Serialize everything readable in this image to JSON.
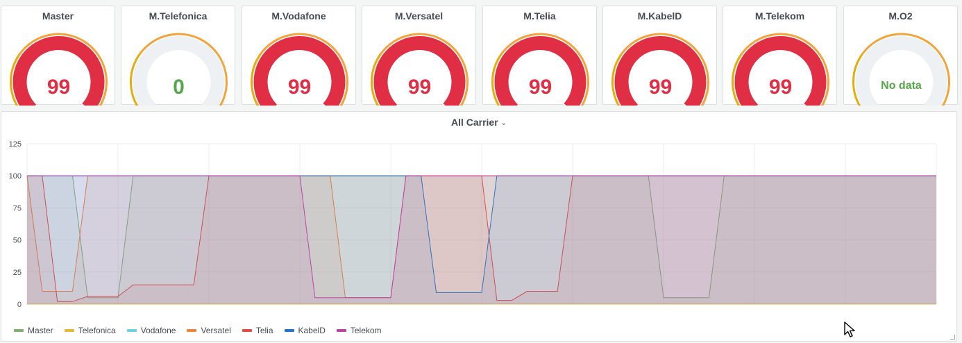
{
  "gauges": [
    {
      "title": "Master",
      "value": "99",
      "level": 99,
      "color": "#e02f44"
    },
    {
      "title": "M.Telefonica",
      "value": "0",
      "level": 0,
      "color": "#56a64b"
    },
    {
      "title": "M.Vodafone",
      "value": "99",
      "level": 99,
      "color": "#e02f44"
    },
    {
      "title": "M.Versatel",
      "value": "99",
      "level": 99,
      "color": "#e02f44"
    },
    {
      "title": "M.Telia",
      "value": "99",
      "level": 99,
      "color": "#e02f44"
    },
    {
      "title": "M.KabelD",
      "value": "99",
      "level": 99,
      "color": "#e02f44"
    },
    {
      "title": "M.Telekom",
      "value": "99",
      "level": 99,
      "color": "#e02f44"
    },
    {
      "title": "M.O2",
      "value": "No data",
      "level": null,
      "color": "#56a64b"
    }
  ],
  "gauge_thresholds": {
    "green": "#56a64b",
    "yellow": "#e5ac0e",
    "orange": "#f2a33a",
    "red": "#e02f44",
    "track": "#eef1f4"
  },
  "chart_title": "All Carrier",
  "chart_data": {
    "type": "area",
    "title": "All Carrier",
    "xlabel": "",
    "ylabel": "",
    "ylim": [
      0,
      125
    ],
    "yticks": [
      "0",
      "25",
      "50",
      "75",
      "100",
      "125"
    ],
    "x": [
      0,
      0.5,
      1,
      1.5,
      2,
      2.5,
      3,
      3.5,
      4,
      4.5,
      5,
      5.5,
      6,
      6.5,
      7,
      7.5,
      8,
      8.5,
      9,
      9.5,
      10,
      10.5,
      11,
      11.5,
      12,
      12.5,
      13,
      13.5,
      14,
      14.5,
      15,
      15.5,
      16,
      16.5,
      17,
      17.5,
      18,
      18.5,
      19,
      19.5,
      20,
      20.5,
      21,
      21.5,
      22,
      22.5,
      23,
      23.5,
      24,
      24.5,
      25,
      25.5,
      26,
      26.5,
      27,
      27.5,
      28,
      28.5,
      29,
      29.5,
      30
    ],
    "grid": true,
    "legend_position": "bottom-left",
    "series": [
      {
        "name": "Master",
        "color": "#7eb26d",
        "values": [
          100,
          100,
          100,
          100,
          5,
          5,
          5,
          100,
          100,
          100,
          100,
          100,
          100,
          100,
          100,
          100,
          100,
          100,
          100,
          100,
          100,
          100,
          100,
          100,
          100,
          100,
          100,
          100,
          100,
          100,
          100,
          100,
          100,
          100,
          100,
          100,
          100,
          100,
          100,
          100,
          100,
          100,
          5,
          5,
          5,
          5,
          100,
          100,
          100,
          100,
          100,
          100,
          100,
          100,
          100,
          100,
          100,
          100,
          100,
          100,
          100
        ]
      },
      {
        "name": "Telefonica",
        "color": "#eab839",
        "values": [
          0,
          0,
          0,
          0,
          0,
          0,
          0,
          0,
          0,
          0,
          0,
          0,
          0,
          0,
          0,
          0,
          0,
          0,
          0,
          0,
          0,
          0,
          0,
          0,
          0,
          0,
          0,
          0,
          0,
          0,
          0,
          0,
          0,
          0,
          0,
          0,
          0,
          0,
          0,
          0,
          0,
          0,
          0,
          0,
          0,
          0,
          0,
          0,
          0,
          0,
          0,
          0,
          0,
          0,
          0,
          0,
          0,
          0,
          0,
          0,
          0
        ]
      },
      {
        "name": "Vodafone",
        "color": "#6ed0e0",
        "values": [
          100,
          100,
          100,
          100,
          100,
          100,
          100,
          100,
          100,
          100,
          100,
          100,
          100,
          100,
          100,
          100,
          100,
          100,
          100,
          100,
          100,
          100,
          100,
          100,
          100,
          100,
          100,
          100,
          100,
          100,
          100,
          100,
          100,
          100,
          100,
          100,
          100,
          100,
          100,
          100,
          100,
          100,
          100,
          100,
          100,
          100,
          100,
          100,
          100,
          100,
          100,
          100,
          100,
          100,
          100,
          100,
          100,
          100,
          100,
          100,
          100
        ]
      },
      {
        "name": "Versatel",
        "color": "#ef843c",
        "values": [
          100,
          10,
          10,
          10,
          100,
          100,
          100,
          100,
          100,
          100,
          100,
          100,
          100,
          100,
          100,
          100,
          100,
          100,
          100,
          100,
          100,
          5,
          5,
          5,
          5,
          100,
          100,
          100,
          100,
          100,
          100,
          100,
          100,
          100,
          100,
          100,
          100,
          100,
          100,
          100,
          100,
          100,
          100,
          100,
          100,
          100,
          100,
          100,
          100,
          100,
          100,
          100,
          100,
          100,
          100,
          100,
          100,
          100,
          100,
          100,
          100
        ]
      },
      {
        "name": "Telia",
        "color": "#e24d42",
        "values": [
          100,
          100,
          2,
          2,
          6,
          6,
          6,
          15,
          15,
          15,
          15,
          15,
          100,
          100,
          100,
          100,
          100,
          100,
          100,
          100,
          100,
          100,
          100,
          100,
          100,
          100,
          100,
          100,
          100,
          100,
          100,
          3,
          3,
          10,
          10,
          10,
          100,
          100,
          100,
          100,
          100,
          100,
          100,
          100,
          100,
          100,
          100,
          100,
          100,
          100,
          100,
          100,
          100,
          100,
          100,
          100,
          100,
          100,
          100,
          100,
          100
        ]
      },
      {
        "name": "KabelD",
        "color": "#1f78c1",
        "values": [
          100,
          100,
          100,
          100,
          100,
          100,
          100,
          100,
          100,
          100,
          100,
          100,
          100,
          100,
          100,
          100,
          100,
          100,
          100,
          100,
          100,
          100,
          100,
          100,
          100,
          100,
          100,
          9,
          9,
          9,
          9,
          100,
          100,
          100,
          100,
          100,
          100,
          100,
          100,
          100,
          100,
          100,
          100,
          100,
          100,
          100,
          100,
          100,
          100,
          100,
          100,
          100,
          100,
          100,
          100,
          100,
          100,
          100,
          100,
          100,
          100
        ]
      },
      {
        "name": "Telekom",
        "color": "#ba43a9",
        "values": [
          100,
          100,
          100,
          100,
          100,
          100,
          100,
          100,
          100,
          100,
          100,
          100,
          100,
          100,
          100,
          100,
          100,
          100,
          100,
          5,
          5,
          5,
          5,
          5,
          5,
          100,
          100,
          100,
          100,
          100,
          100,
          100,
          100,
          100,
          100,
          100,
          100,
          100,
          100,
          100,
          100,
          100,
          100,
          100,
          100,
          100,
          100,
          100,
          100,
          100,
          100,
          100,
          100,
          100,
          100,
          100,
          100,
          100,
          100,
          100,
          100
        ]
      }
    ]
  }
}
